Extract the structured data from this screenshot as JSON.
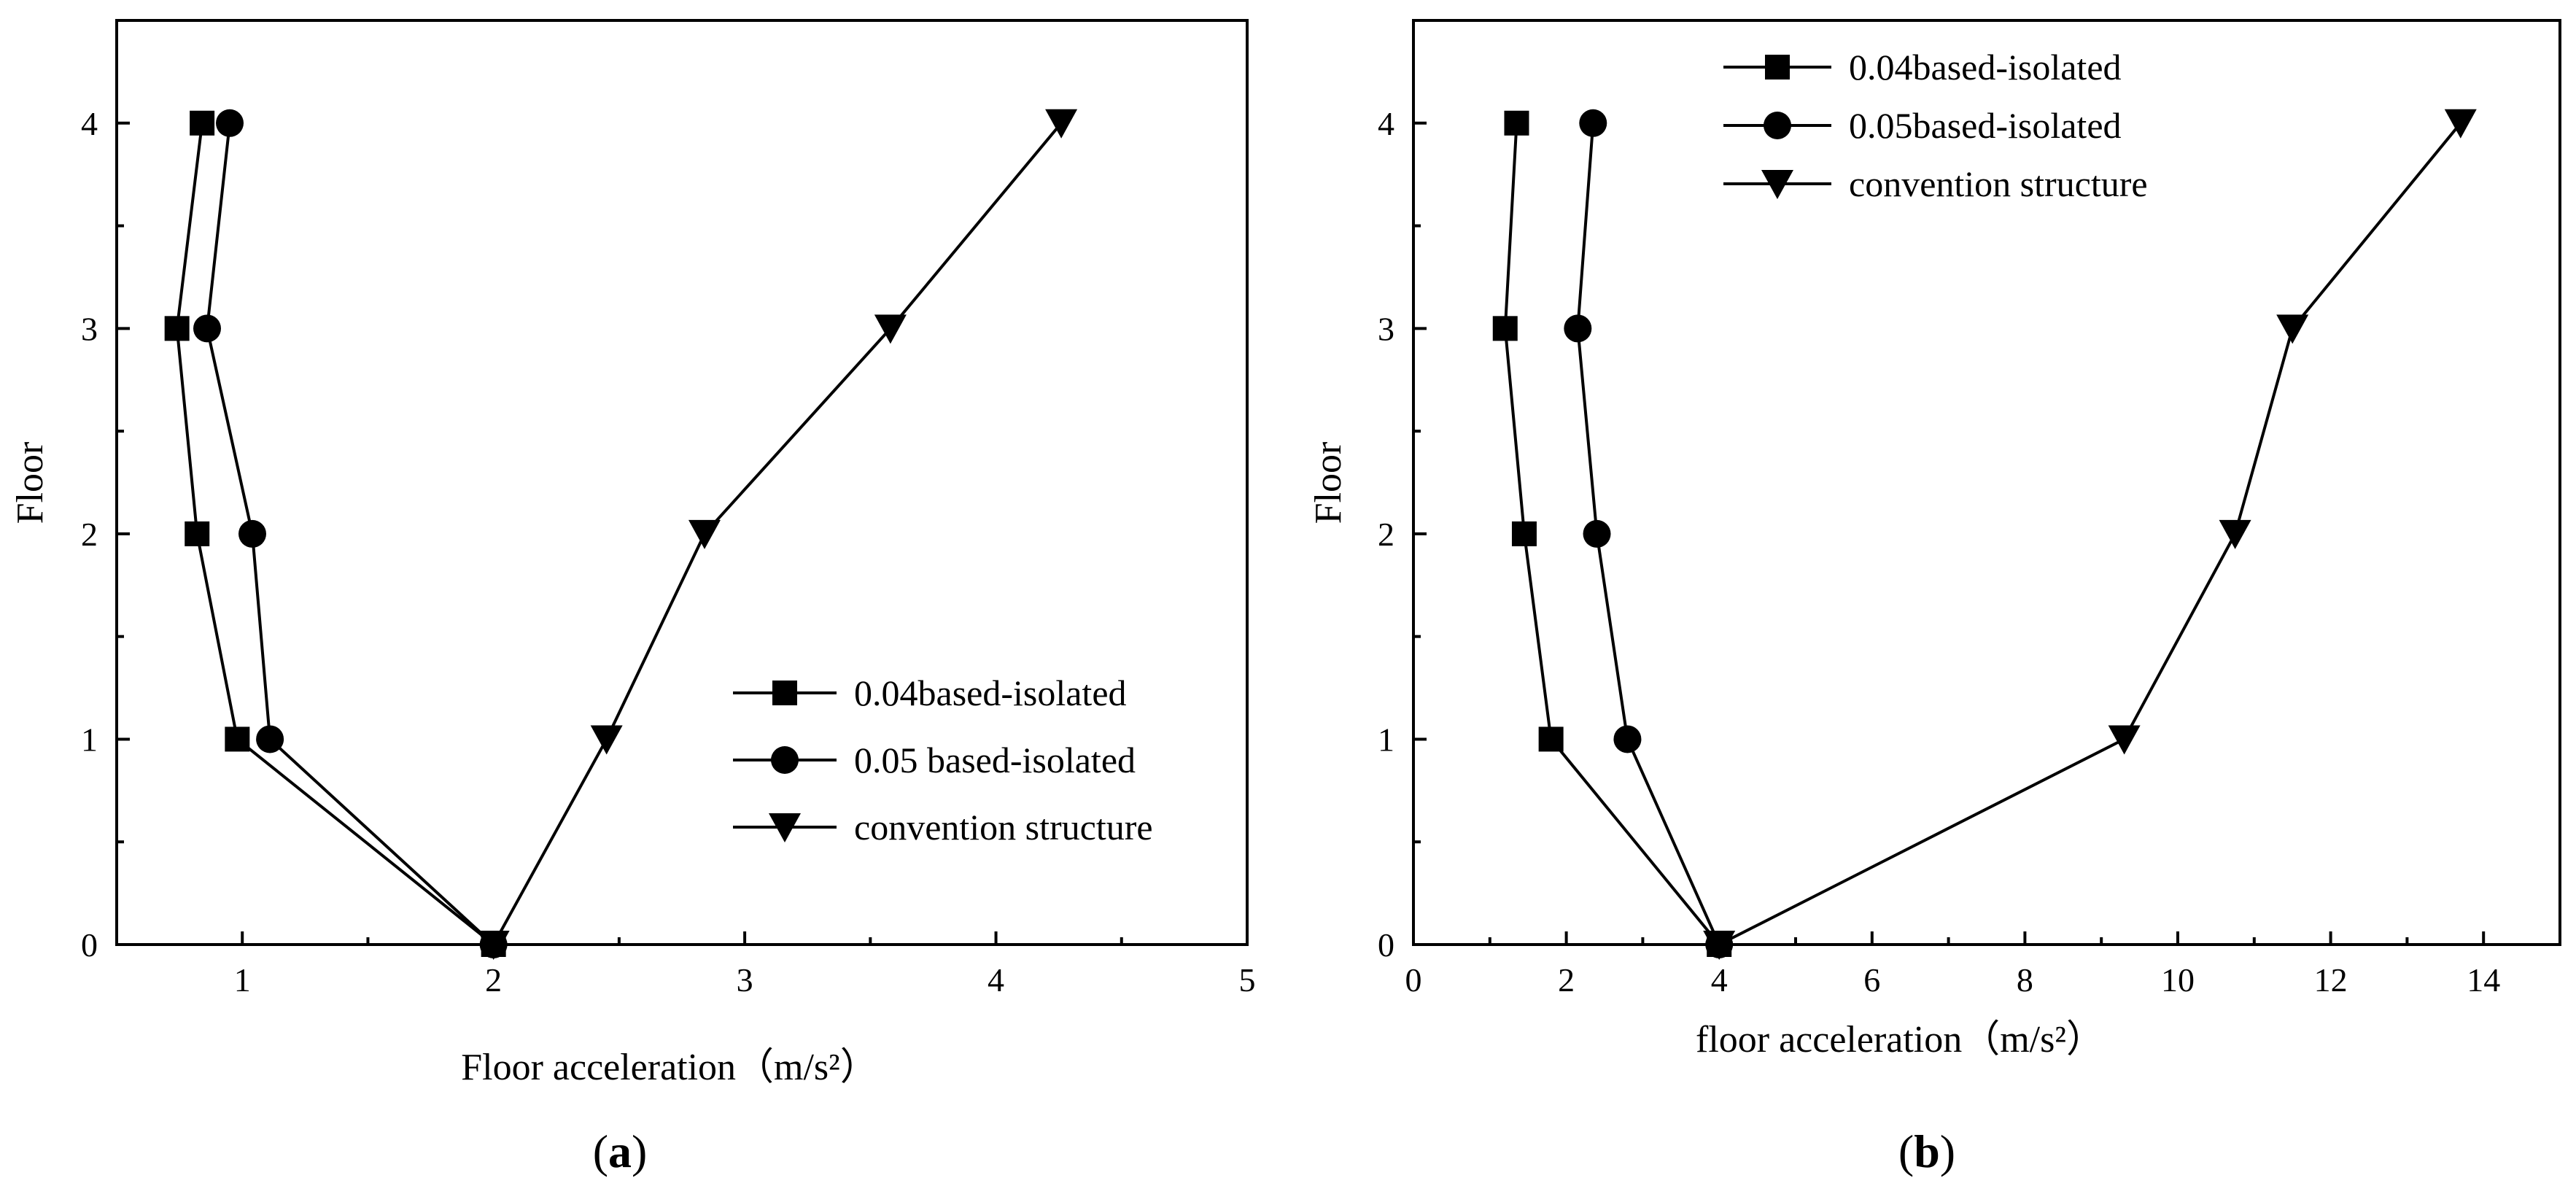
{
  "chart_data": [
    {
      "type": "line",
      "panel_label": "a",
      "xlabel": "Floor acceleration（m/s²）",
      "ylabel": "Floor",
      "xlim": [
        0.5,
        5
      ],
      "ylim": [
        0,
        4.5
      ],
      "xticks": [
        1,
        2,
        3,
        4,
        5
      ],
      "yticks": [
        0,
        1,
        2,
        3,
        4
      ],
      "grid": false,
      "legend_position": "lower-right",
      "series": [
        {
          "name": "0.04based-isolated",
          "marker": "square",
          "points": [
            [
              2.0,
              0
            ],
            [
              0.98,
              1
            ],
            [
              0.82,
              2
            ],
            [
              0.74,
              3
            ],
            [
              0.84,
              4
            ]
          ]
        },
        {
          "name": "0.05 based-isolated",
          "marker": "circle",
          "points": [
            [
              2.0,
              0
            ],
            [
              1.11,
              1
            ],
            [
              1.04,
              2
            ],
            [
              0.86,
              3
            ],
            [
              0.95,
              4
            ]
          ]
        },
        {
          "name": "convention structure",
          "marker": "triangle-down",
          "points": [
            [
              2.0,
              0
            ],
            [
              2.45,
              1
            ],
            [
              2.84,
              2
            ],
            [
              3.58,
              3
            ],
            [
              4.26,
              4
            ]
          ]
        }
      ]
    },
    {
      "type": "line",
      "panel_label": "b",
      "xlabel": "floor acceleration（m/s²）",
      "ylabel": "Floor",
      "xlim": [
        0,
        15
      ],
      "ylim": [
        0,
        4.5
      ],
      "xticks": [
        0,
        2,
        4,
        6,
        8,
        10,
        12,
        14
      ],
      "yticks": [
        0,
        1,
        2,
        3,
        4
      ],
      "grid": false,
      "legend_position": "top-left",
      "series": [
        {
          "name": "0.04based-isolated",
          "marker": "square",
          "points": [
            [
              4.0,
              0
            ],
            [
              1.8,
              1
            ],
            [
              1.45,
              2
            ],
            [
              1.2,
              3
            ],
            [
              1.35,
              4
            ]
          ]
        },
        {
          "name": "0.05based-isolated",
          "marker": "circle",
          "points": [
            [
              4.0,
              0
            ],
            [
              2.8,
              1
            ],
            [
              2.4,
              2
            ],
            [
              2.15,
              3
            ],
            [
              2.35,
              4
            ]
          ]
        },
        {
          "name": "convention structure",
          "marker": "triangle-down",
          "points": [
            [
              4.0,
              0
            ],
            [
              9.3,
              1
            ],
            [
              10.75,
              2
            ],
            [
              11.5,
              3
            ],
            [
              13.7,
              4
            ]
          ]
        }
      ]
    }
  ]
}
